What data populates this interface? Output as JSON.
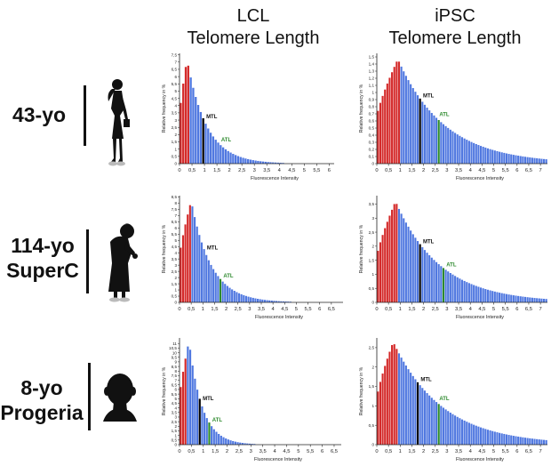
{
  "columns": {
    "lcl": {
      "line1": "LCL",
      "line2": "Telomere Length"
    },
    "ipsc": {
      "line1": "iPSC",
      "line2": "Telomere Length"
    }
  },
  "rows": [
    {
      "label_lines": [
        "43-yo"
      ],
      "icon": "adult-woman-silhouette-icon"
    },
    {
      "label_lines": [
        "114-yo",
        "SuperC"
      ],
      "icon": "elderly-woman-silhouette-icon"
    },
    {
      "label_lines": [
        "8-yo",
        "Progeria"
      ],
      "icon": "child-head-silhouette-icon"
    }
  ],
  "colors": {
    "short": "#d42a2a",
    "bar": "#5078e0",
    "mtl": "#000000",
    "atl": "#2d8a2d",
    "atl_label": "#2d8a2d"
  },
  "chart_data": [
    {
      "id": "lcl-43",
      "type": "bar",
      "ylabel": "Relative frequency in %",
      "xlabel": "Fluorescence Intensity",
      "xlim": [
        0,
        6.2
      ],
      "ylim": [
        0,
        7.6
      ],
      "bin_width": 0.1,
      "xticks": [
        "0",
        "0,5",
        "1",
        "1,5",
        "2",
        "2,5",
        "3",
        "3,5",
        "4",
        "4,5",
        "5",
        "5,5",
        "6"
      ],
      "yticks": [
        "0",
        "0,5",
        "1",
        "1,5",
        "2",
        "2,5",
        "3",
        "3,5",
        "4",
        "4,5",
        "5",
        "5,5",
        "6",
        "6,5",
        "7",
        "7,5"
      ],
      "peak_x": 0.3,
      "peak_y": 7.2,
      "decay": 0.78,
      "short_until": 0.4,
      "mtl_x": 1.0,
      "atl_x": 1.6,
      "mtl_label": "MTL",
      "atl_label": "ATL"
    },
    {
      "id": "ipsc-43",
      "type": "bar",
      "ylabel": "Relative frequency in %",
      "xlabel": "Fluorescence Intensity",
      "xlim": [
        0,
        7.3
      ],
      "ylim": [
        0,
        1.55
      ],
      "bin_width": 0.1,
      "xticks": [
        "0",
        "0,5",
        "1",
        "1,5",
        "2",
        "2,5",
        "3",
        "3,5",
        "4",
        "4,5",
        "5",
        "5,5",
        "6",
        "6,5",
        "7"
      ],
      "yticks": [
        "0",
        "0,1",
        "0,2",
        "0,3",
        "0,4",
        "0,5",
        "0,6",
        "0,7",
        "0,8",
        "0,9",
        "1",
        "1,1",
        "1,2",
        "1,3",
        "1,4",
        "1,5"
      ],
      "peak_x": 0.9,
      "peak_y": 1.47,
      "decay": 2.0,
      "short_until": 1.0,
      "mtl_x": 1.9,
      "atl_x": 2.6,
      "mtl_label": "MTL",
      "atl_label": "ATL"
    },
    {
      "id": "lcl-114",
      "type": "bar",
      "ylabel": "Relative frequency in %",
      "xlabel": "Fluorescence Intensity",
      "xlim": [
        0,
        7.0
      ],
      "ylim": [
        0,
        8.6
      ],
      "bin_width": 0.1,
      "xticks": [
        "0",
        "0,5",
        "1",
        "1,5",
        "2",
        "2,5",
        "3",
        "3,5",
        "4",
        "4,5",
        "5",
        "5,5",
        "6",
        "6,5"
      ],
      "yticks": [
        "0",
        "0,5",
        "1",
        "1,5",
        "2",
        "2,5",
        "3",
        "3,5",
        "4",
        "4,5",
        "5",
        "5,5",
        "6",
        "6,5",
        "7",
        "7,5",
        "8",
        "8,5"
      ],
      "peak_x": 0.5,
      "peak_y": 8.2,
      "decay": 0.85,
      "short_until": 0.5,
      "mtl_x": 1.1,
      "atl_x": 1.8,
      "mtl_label": "MTL",
      "atl_label": "ATL"
    },
    {
      "id": "ipsc-114",
      "type": "bar",
      "ylabel": "Relative frequency in %",
      "xlabel": "Fluorescence Intensity",
      "xlim": [
        0,
        7.3
      ],
      "ylim": [
        0,
        3.8
      ],
      "bin_width": 0.1,
      "xticks": [
        "0",
        "0,5",
        "1",
        "1,5",
        "2",
        "2,5",
        "3",
        "3,5",
        "4",
        "4,5",
        "5",
        "5,5",
        "6",
        "6,5",
        "7"
      ],
      "yticks": [
        "0",
        "0,5",
        "1",
        "1,5",
        "2",
        "2,5",
        "3",
        "3,5"
      ],
      "peak_x": 0.8,
      "peak_y": 3.6,
      "decay": 1.9,
      "short_until": 0.9,
      "mtl_x": 1.9,
      "atl_x": 2.9,
      "mtl_label": "MTL",
      "atl_label": "ATL"
    },
    {
      "id": "lcl-8",
      "type": "bar",
      "ylabel": "Relative frequency in %",
      "xlabel": "Fluorescence Intensity",
      "xlim": [
        0,
        6.8
      ],
      "ylim": [
        0,
        11.6
      ],
      "bin_width": 0.1,
      "xticks": [
        "0",
        "0,5",
        "1",
        "1,5",
        "2",
        "2,5",
        "3",
        "3,5",
        "4",
        "4,5",
        "5",
        "5,5",
        "6",
        "6,5"
      ],
      "yticks": [
        "0",
        "0,5",
        "1",
        "1,5",
        "2",
        "2,5",
        "3",
        "3,5",
        "4",
        "4,5",
        "5",
        "5,5",
        "6",
        "6,5",
        "7",
        "7,5",
        "8",
        "8,5",
        "9",
        "9,5",
        "10",
        "10,5",
        "11"
      ],
      "peak_x": 0.4,
      "peak_y": 11.3,
      "decay": 0.55,
      "short_until": 0.3,
      "mtl_x": 0.9,
      "atl_x": 1.3,
      "mtl_label": "MTL",
      "atl_label": "ATL"
    },
    {
      "id": "ipsc-8",
      "type": "bar",
      "ylabel": "Relative frequency in %",
      "xlabel": "Fluorescence Intensity",
      "xlim": [
        0,
        7.3
      ],
      "ylim": [
        0,
        2.75
      ],
      "bin_width": 0.1,
      "xticks": [
        "0",
        "0,5",
        "1",
        "1,5",
        "2",
        "2,5",
        "3",
        "3,5",
        "4",
        "4,5",
        "5",
        "5,5",
        "6",
        "6,5",
        "7"
      ],
      "yticks": [
        "0",
        "0,5",
        "1",
        "1,5",
        "2",
        "2,5"
      ],
      "peak_x": 0.7,
      "peak_y": 2.65,
      "decay": 2.1,
      "short_until": 0.9,
      "mtl_x": 1.8,
      "atl_x": 2.6,
      "mtl_label": "MTL",
      "atl_label": "ATL"
    }
  ]
}
